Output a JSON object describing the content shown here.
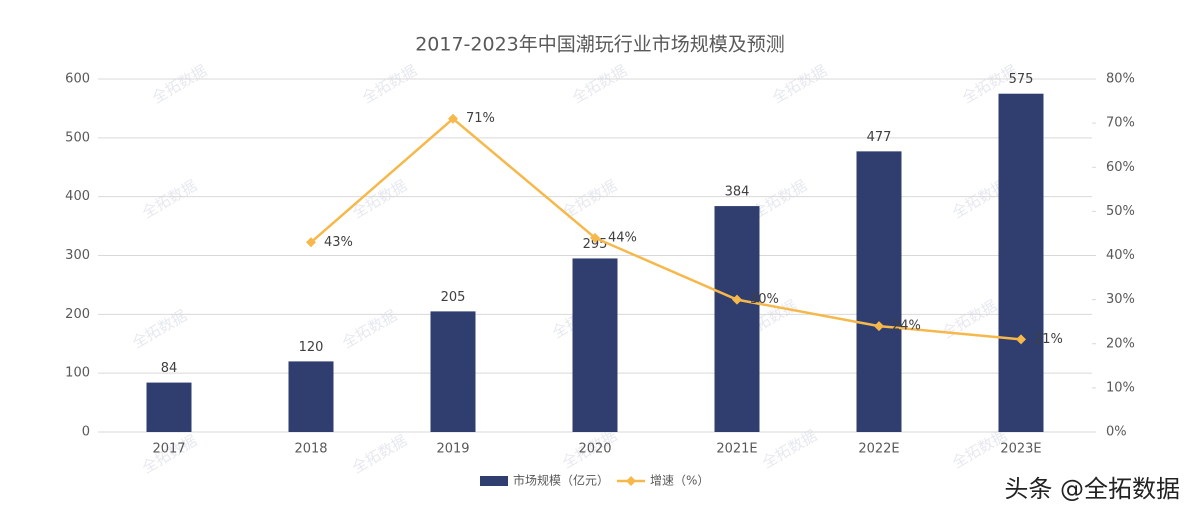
{
  "chart_data": {
    "type": "bar-line",
    "title": "2017-2023年中国潮玩行业市场规模及预测",
    "categories": [
      "2017",
      "2018",
      "2019",
      "2020",
      "2021E",
      "2022E",
      "2023E"
    ],
    "series": [
      {
        "name": "市场规模（亿元）",
        "type": "bar",
        "color": "#2f3e6e",
        "values": [
          84,
          120,
          205,
          295,
          384,
          477,
          575
        ]
      },
      {
        "name": "增速（%）",
        "type": "line",
        "color": "#f7b84b",
        "axis": "y2",
        "values": [
          null,
          43,
          71,
          44,
          30,
          24,
          21
        ],
        "value_labels": [
          null,
          "43%",
          "71%",
          "44%",
          "30%",
          "24%",
          "21%"
        ]
      }
    ],
    "ylim": [
      0,
      600
    ],
    "yticks": [
      0,
      100,
      200,
      300,
      400,
      500,
      600
    ],
    "y2lim": [
      0,
      80
    ],
    "y2ticks": [
      {
        "value": 0,
        "label": "0%"
      },
      {
        "value": 10,
        "label": "10%"
      },
      {
        "value": 20,
        "label": "20%"
      },
      {
        "value": 30,
        "label": "30%"
      },
      {
        "value": 40,
        "label": "40%"
      },
      {
        "value": 50,
        "label": "50%"
      },
      {
        "value": 60,
        "label": "60%"
      },
      {
        "value": 70,
        "label": "70%"
      },
      {
        "value": 80,
        "label": "80%"
      }
    ],
    "grid": true,
    "legend": "bottom",
    "watermark": "全拓数据",
    "credit": "头条 @全拓数据"
  }
}
